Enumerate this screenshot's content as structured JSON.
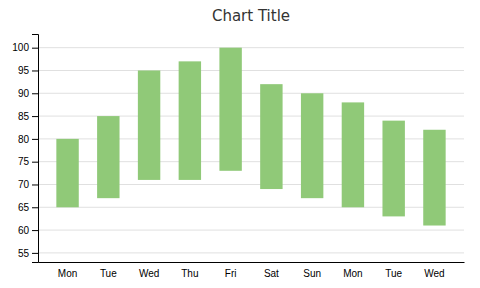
{
  "chart_data": {
    "type": "range_bar",
    "title": "Chart Title",
    "categories": [
      "Mon",
      "Tue",
      "Wed",
      "Thu",
      "Fri",
      "Sat",
      "Sun",
      "Mon",
      "Tue",
      "Wed"
    ],
    "bottoms": [
      65,
      67,
      71,
      71,
      73,
      69,
      67,
      65,
      63,
      61
    ],
    "tops": [
      80,
      85,
      95,
      97,
      100,
      92,
      90,
      88,
      84,
      82
    ],
    "color": "#90C978",
    "ylim": [
      53,
      103
    ],
    "yticks": [
      55,
      60,
      65,
      70,
      75,
      80,
      85,
      90,
      95,
      100
    ],
    "grid": true
  }
}
